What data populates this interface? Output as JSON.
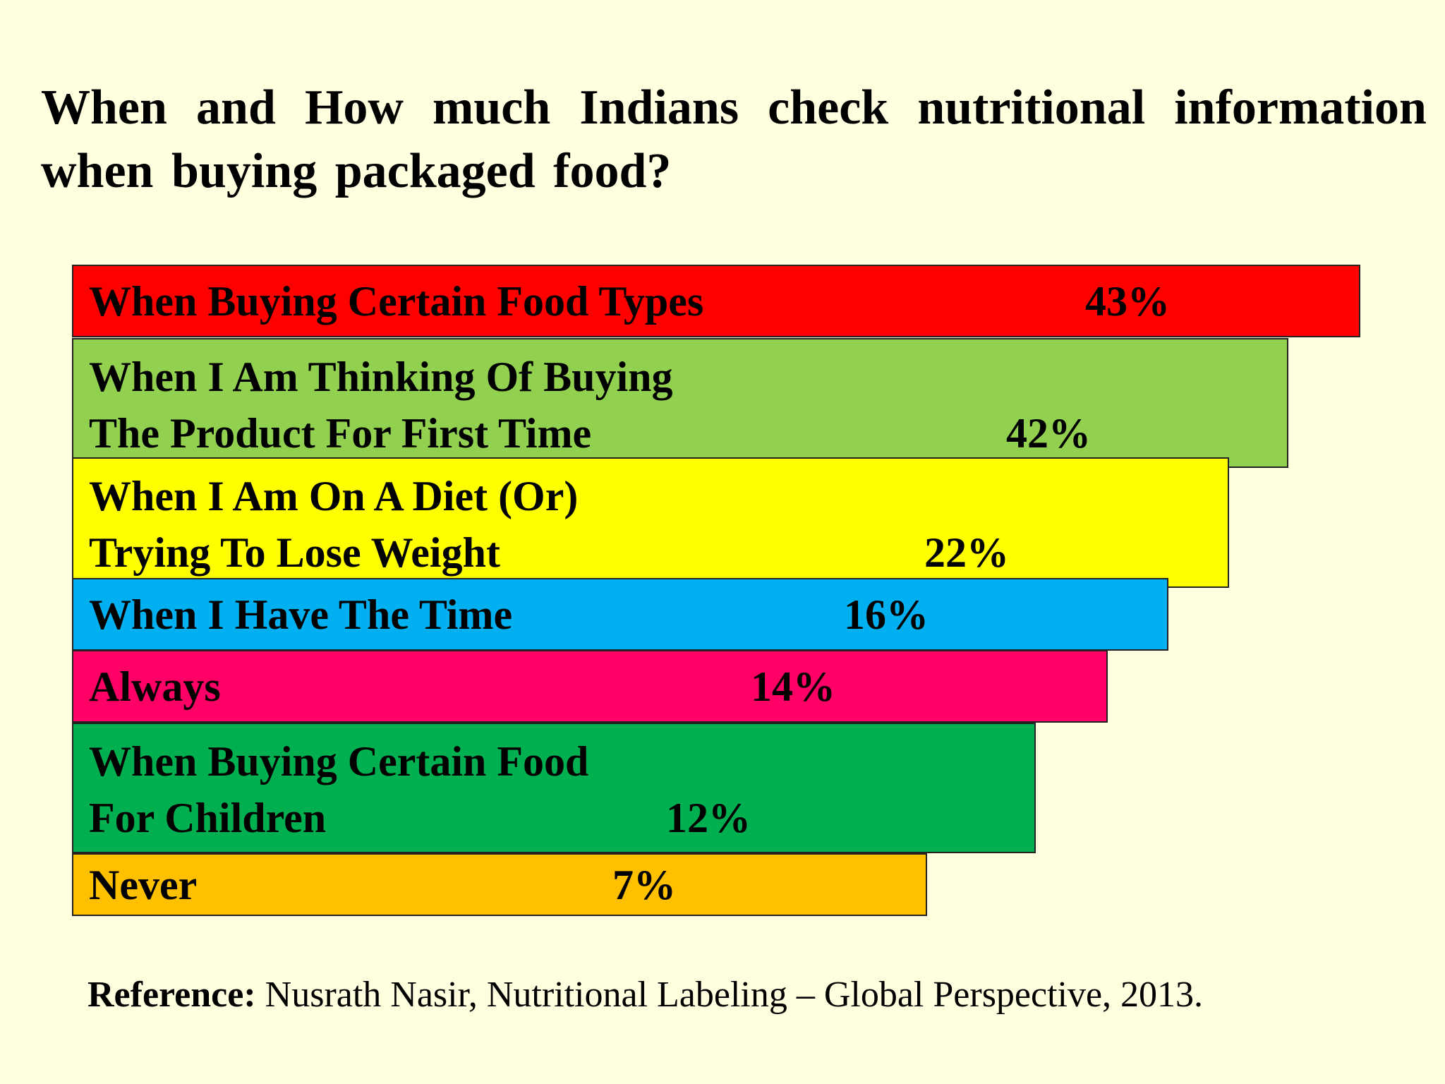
{
  "title": "When and How much Indians check nutritional information when buying packaged food?",
  "reference": {
    "label": "Reference:",
    "text": " Nusrath Nasir, Nutritional Labeling – Global Perspective, 2013."
  },
  "chart_data": {
    "type": "bar",
    "orientation": "horizontal",
    "title": "When and How much Indians check nutritional information when buying packaged food?",
    "categories": [
      "When Buying Certain Food Types",
      "When I Am Thinking Of Buying The Product For First Time",
      "When I Am On A Diet (Or) Trying To Lose Weight",
      "When I Have The Time",
      "Always",
      "When Buying Certain Food For Children",
      "Never"
    ],
    "values": [
      43,
      42,
      22,
      16,
      14,
      12,
      7
    ],
    "unit": "%",
    "grid": false,
    "legend": "none",
    "bars": [
      {
        "lines": [
          "When Buying Certain Food Types"
        ],
        "value_label": "43%",
        "color": "#ff0000"
      },
      {
        "lines": [
          "When I Am Thinking Of Buying",
          "The Product For First Time"
        ],
        "value_label": "42%",
        "color": "#92d050"
      },
      {
        "lines": [
          "When I Am On A Diet (Or)",
          "Trying To Lose Weight"
        ],
        "value_label": "22%",
        "color": "#ffff00"
      },
      {
        "lines": [
          "When I Have The Time"
        ],
        "value_label": "16%",
        "color": "#00b0f0"
      },
      {
        "lines": [
          "Always"
        ],
        "value_label": "14%",
        "color": "#ff0066"
      },
      {
        "lines": [
          "When Buying Certain Food",
          "For Children"
        ],
        "value_label": "12%",
        "color": "#00b050"
      },
      {
        "lines": [
          "Never"
        ],
        "value_label": "7%",
        "color": "#ffc000"
      }
    ]
  }
}
